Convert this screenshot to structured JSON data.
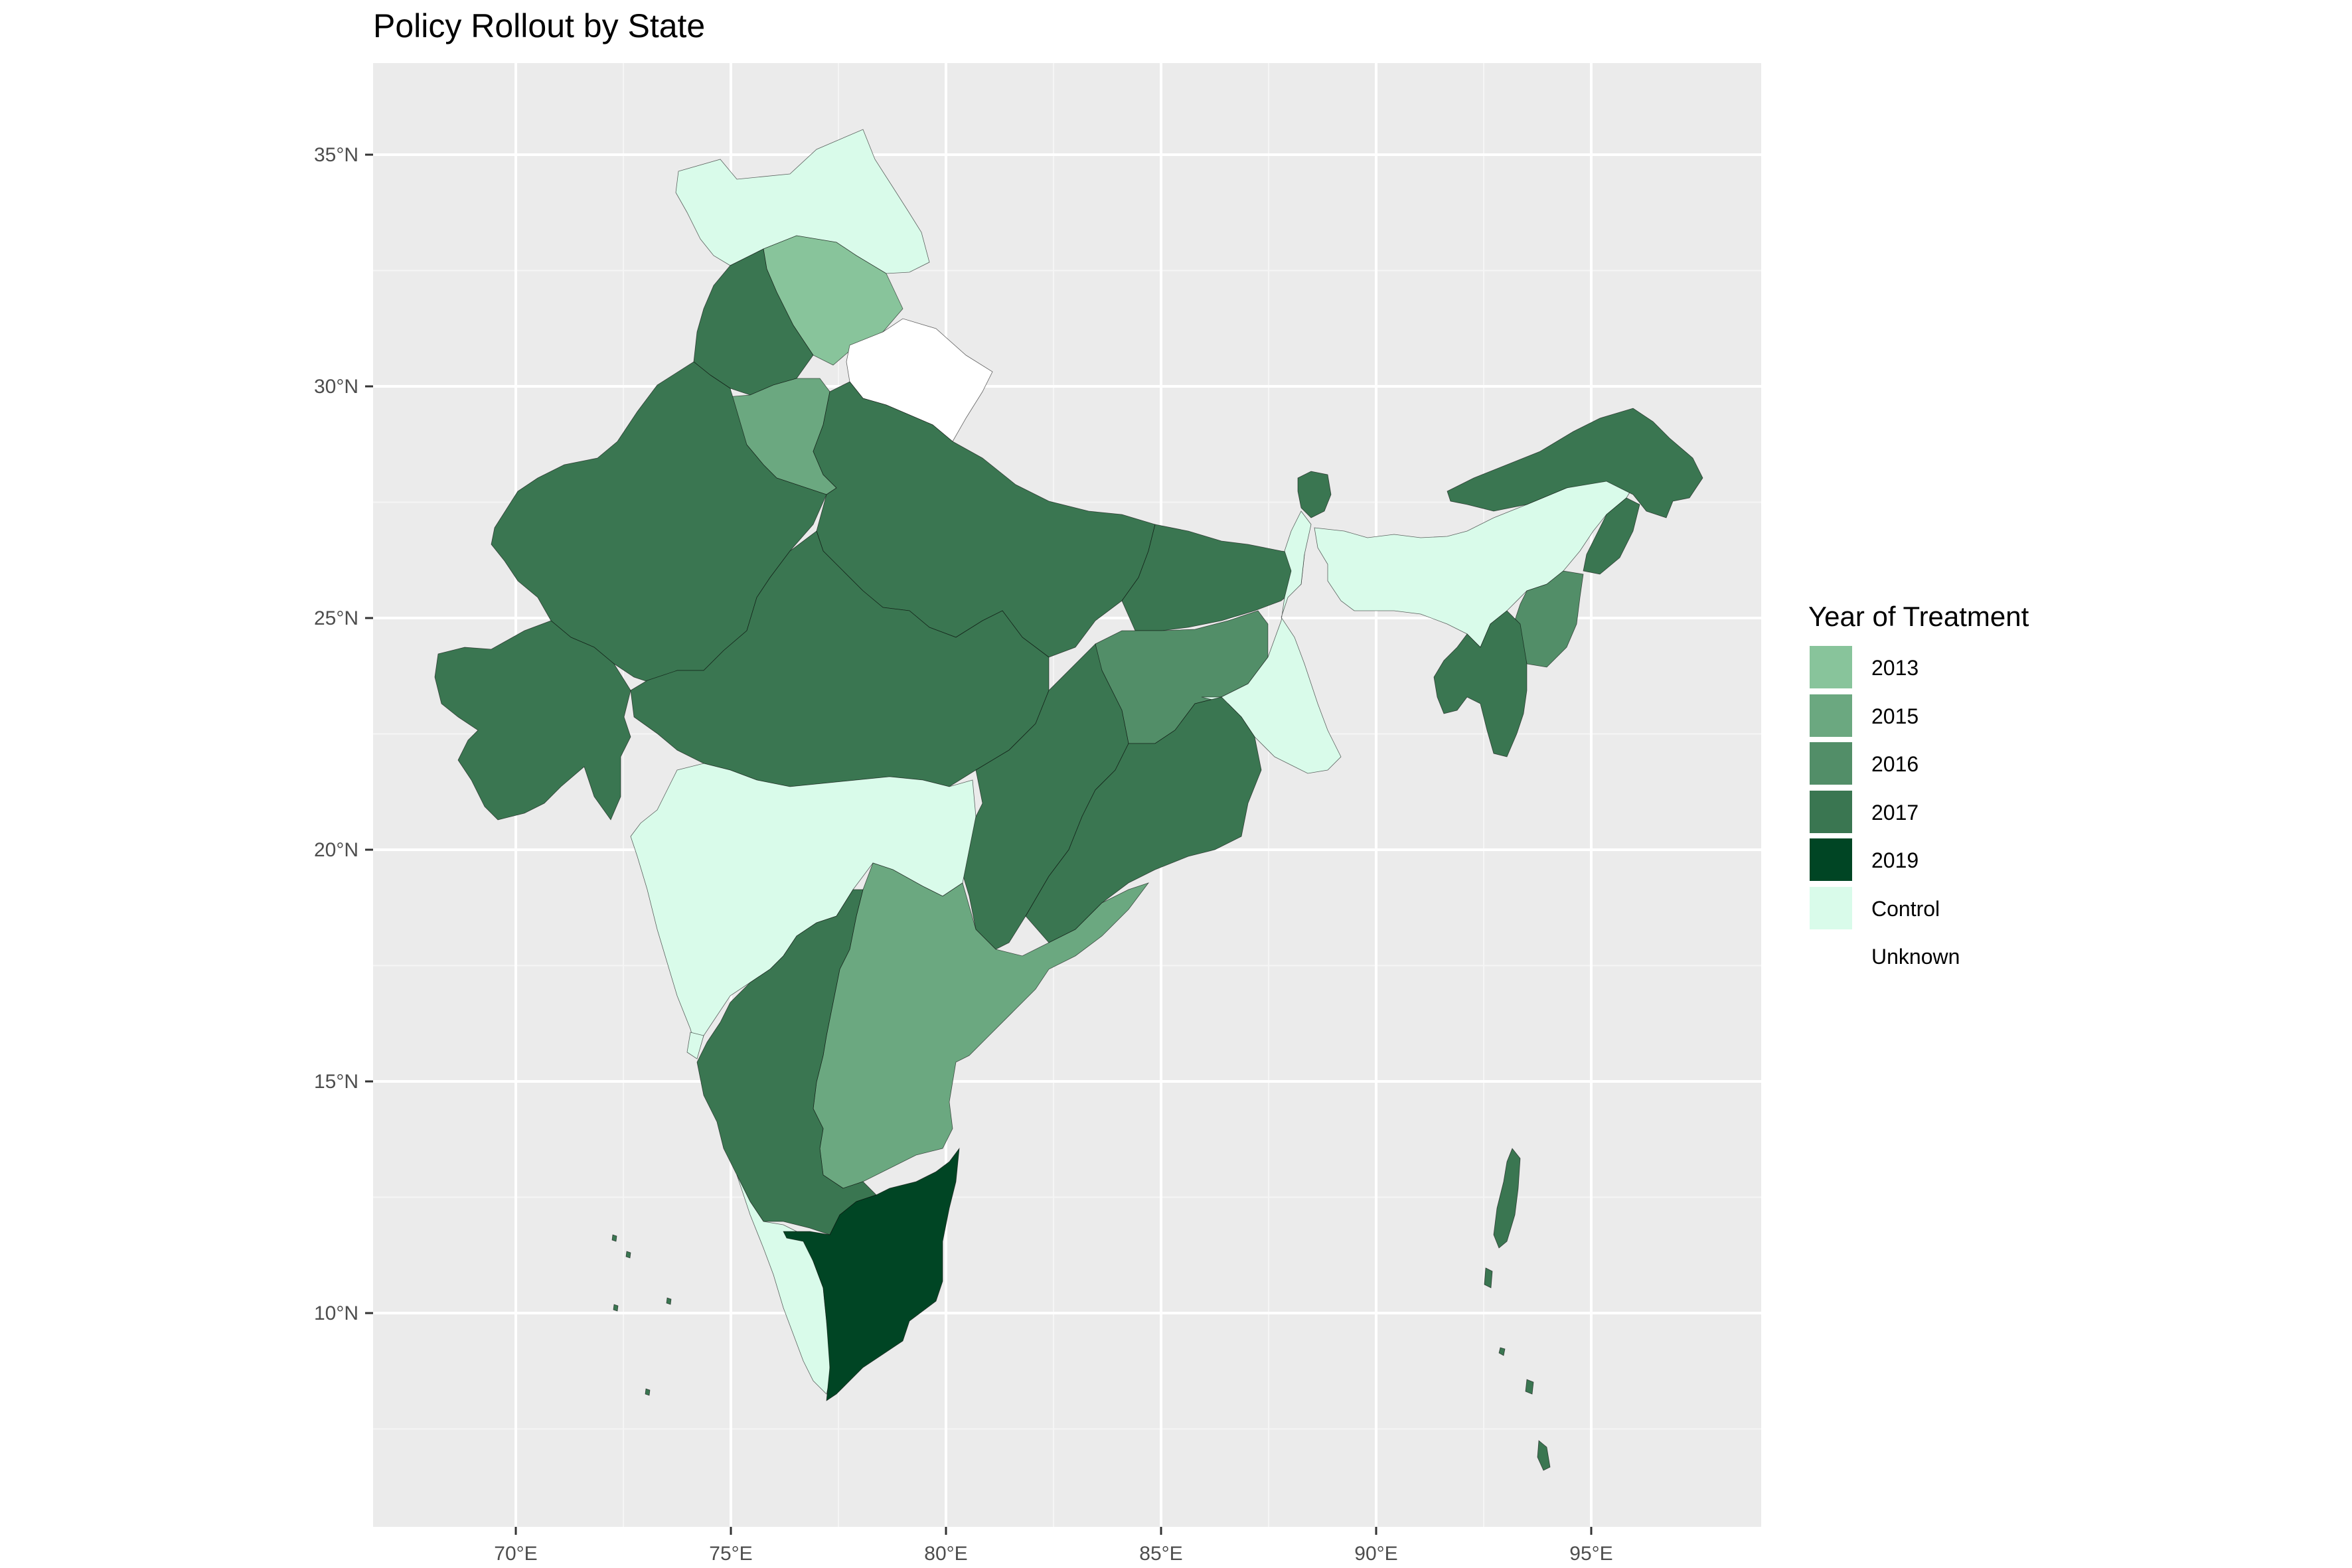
{
  "title": "Policy Rollout by State",
  "legend": {
    "title": "Year of Treatment",
    "items": [
      {
        "label": "2013",
        "color": "#88c49b"
      },
      {
        "label": "2015",
        "color": "#6ba880"
      },
      {
        "label": "2016",
        "color": "#528e68"
      },
      {
        "label": "2017",
        "color": "#3a7651"
      },
      {
        "label": "2019",
        "color": "#004524"
      },
      {
        "label": "Control",
        "color": "#d9fbea"
      },
      {
        "label": "Unknown",
        "color": "#ffffff"
      }
    ]
  },
  "axes": {
    "x_ticks": [
      "70°E",
      "75°E",
      "80°E",
      "85°E",
      "90°E",
      "95°E"
    ],
    "y_ticks": [
      "35°N",
      "30°N",
      "25°N",
      "20°N",
      "15°N",
      "10°N"
    ]
  },
  "colors": {
    "panel_background": "#ebebeb",
    "gridline": "#ffffff",
    "border": "#000000"
  },
  "regions": [
    {
      "name": "Ladakh / Jammu & Kashmir",
      "category": "Control"
    },
    {
      "name": "Himachal Pradesh",
      "category": "2013"
    },
    {
      "name": "Punjab",
      "category": "2017"
    },
    {
      "name": "Haryana",
      "category": "2015"
    },
    {
      "name": "Uttarakhand",
      "category": "Unknown"
    },
    {
      "name": "Rajasthan",
      "category": "2017"
    },
    {
      "name": "Gujarat",
      "category": "2017"
    },
    {
      "name": "Uttar Pradesh",
      "category": "2017"
    },
    {
      "name": "Madhya Pradesh",
      "category": "2017"
    },
    {
      "name": "Bihar",
      "category": "2017"
    },
    {
      "name": "Jharkhand",
      "category": "2016"
    },
    {
      "name": "West Bengal",
      "category": "Control"
    },
    {
      "name": "Chhattisgarh",
      "category": "2017"
    },
    {
      "name": "Odisha",
      "category": "2017"
    },
    {
      "name": "Maharashtra",
      "category": "Control"
    },
    {
      "name": "Telangana / Andhra Pradesh",
      "category": "2015"
    },
    {
      "name": "Karnataka",
      "category": "2017"
    },
    {
      "name": "Goa",
      "category": "Control"
    },
    {
      "name": "Kerala",
      "category": "Control"
    },
    {
      "name": "Tamil Nadu",
      "category": "2019"
    },
    {
      "name": "Sikkim",
      "category": "2017"
    },
    {
      "name": "Assam / Meghalaya",
      "category": "Control"
    },
    {
      "name": "Arunachal Pradesh",
      "category": "2017"
    },
    {
      "name": "Nagaland",
      "category": "2017"
    },
    {
      "name": "Manipur",
      "category": "2016"
    },
    {
      "name": "Mizoram / Tripura",
      "category": "2017"
    },
    {
      "name": "Andaman & Nicobar Islands",
      "category": "2017"
    },
    {
      "name": "Lakshadweep",
      "category": "2017"
    }
  ]
}
